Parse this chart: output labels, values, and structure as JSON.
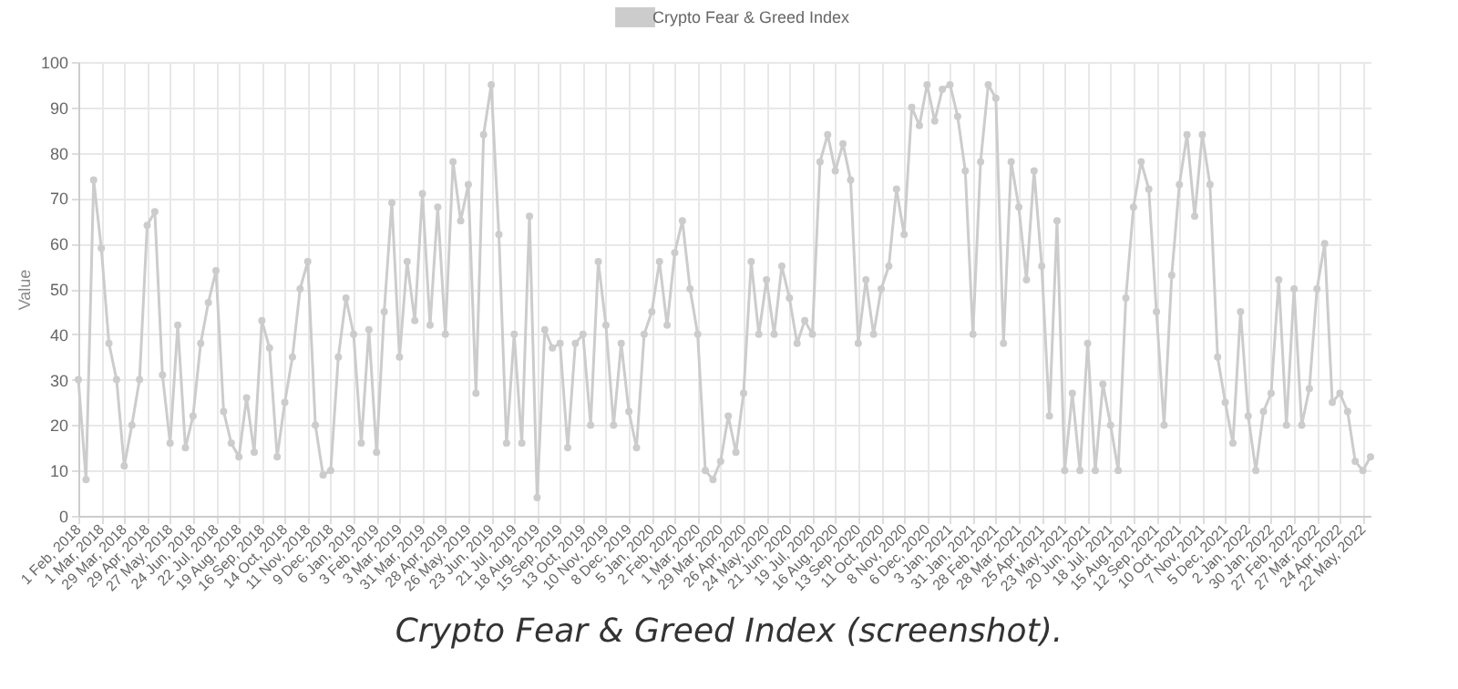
{
  "chart_data": {
    "type": "line",
    "ylabel": "Value",
    "ylim": [
      0,
      100
    ],
    "yticks": [
      0,
      10,
      20,
      30,
      40,
      50,
      60,
      70,
      80,
      90,
      100
    ],
    "grid": true,
    "legend": "top",
    "marker": "circle",
    "annotations": [
      "Crypto Fear & Greed Index (screenshot)."
    ],
    "categories": [
      "1 Feb, 2018",
      null,
      null,
      "1 Mar, 2018",
      null,
      null,
      "29 Mar, 2018",
      null,
      null,
      "29 Apr, 2018",
      null,
      null,
      "27 May, 2018",
      null,
      null,
      "24 Jun, 2018",
      null,
      null,
      "22 Jul, 2018",
      null,
      null,
      "19 Aug, 2018",
      null,
      null,
      "16 Sep, 2018",
      null,
      null,
      "14 Oct, 2018",
      null,
      null,
      "11 Nov, 2018",
      null,
      null,
      "9 Dec, 2018",
      null,
      null,
      "6 Jan, 2019",
      null,
      null,
      "3 Feb, 2019",
      null,
      null,
      "3 Mar, 2019",
      null,
      null,
      "31 Mar, 2019",
      null,
      null,
      "28 Apr, 2019",
      null,
      null,
      "26 May, 2019",
      null,
      null,
      "23 Jun, 2019",
      null,
      null,
      "21 Jul, 2019",
      null,
      null,
      "18 Aug, 2019",
      null,
      null,
      "15 Sep, 2019",
      null,
      null,
      "13 Oct, 2019",
      null,
      null,
      "10 Nov, 2019",
      null,
      null,
      "8 Dec, 2019",
      null,
      null,
      "5 Jan, 2020",
      null,
      null,
      "2 Feb, 2020",
      null,
      null,
      "1 Mar, 2020",
      null,
      null,
      "29 Mar, 2020",
      null,
      null,
      "26 Apr, 2020",
      null,
      null,
      "24 May, 2020",
      null,
      null,
      "21 Jun, 2020",
      null,
      null,
      "19 Jul, 2020",
      null,
      null,
      "16 Aug, 2020",
      null,
      null,
      "13 Sep, 2020",
      null,
      null,
      "11 Oct, 2020",
      null,
      null,
      "8 Nov, 2020",
      null,
      null,
      "6 Dec, 2020",
      null,
      null,
      "3 Jan, 2021",
      null,
      null,
      "31 Jan, 2021",
      null,
      null,
      "28 Feb, 2021",
      null,
      null,
      "28 Mar, 2021",
      null,
      null,
      "25 Apr, 2021",
      null,
      null,
      "23 May, 2021",
      null,
      null,
      "20 Jun, 2021",
      null,
      null,
      "18 Jul, 2021",
      null,
      null,
      "15 Aug, 2021",
      null,
      null,
      "12 Sep, 2021",
      null,
      null,
      "10 Oct, 2021",
      null,
      null,
      "7 Nov, 2021",
      null,
      null,
      "5 Dec, 2021",
      null,
      null,
      "2 Jan, 2022",
      null,
      null,
      "30 Jan, 2022",
      null,
      null,
      "27 Feb, 2022",
      null,
      null,
      "27 Mar, 2022",
      null,
      null,
      "24 Apr, 2022",
      null,
      null,
      "22 May, 2022",
      null
    ],
    "series": [
      {
        "name": "Crypto Fear & Greed Index",
        "color": "#cccccc",
        "values": [
          30,
          8,
          74,
          59,
          38,
          30,
          11,
          20,
          30,
          64,
          67,
          31,
          16,
          42,
          15,
          22,
          38,
          47,
          54,
          23,
          16,
          13,
          26,
          14,
          43,
          37,
          13,
          25,
          35,
          50,
          56,
          20,
          9,
          10,
          35,
          48,
          40,
          16,
          41,
          14,
          45,
          69,
          35,
          56,
          43,
          71,
          42,
          68,
          40,
          78,
          65,
          73,
          27,
          84,
          95,
          62,
          16,
          40,
          16,
          66,
          4,
          41,
          37,
          38,
          15,
          38,
          40,
          20,
          56,
          42,
          20,
          38,
          23,
          15,
          40,
          45,
          56,
          42,
          58,
          65,
          50,
          40,
          10,
          8,
          12,
          22,
          14,
          27,
          56,
          40,
          52,
          40,
          55,
          48,
          38,
          43,
          40,
          78,
          84,
          76,
          82,
          74,
          38,
          52,
          40,
          50,
          55,
          72,
          62,
          90,
          86,
          95,
          87,
          94,
          95,
          88,
          76,
          40,
          78,
          95,
          92,
          38,
          78,
          68,
          52,
          76,
          55,
          22,
          65,
          10,
          27,
          10,
          38,
          10,
          29,
          20,
          10,
          48,
          68,
          78,
          72,
          45,
          20,
          53,
          73,
          84,
          66,
          84,
          73,
          35,
          25,
          16,
          45,
          22,
          10,
          23,
          27,
          52,
          20,
          50,
          20,
          28,
          50,
          60,
          25,
          27,
          23,
          12,
          10,
          13
        ]
      }
    ]
  }
}
